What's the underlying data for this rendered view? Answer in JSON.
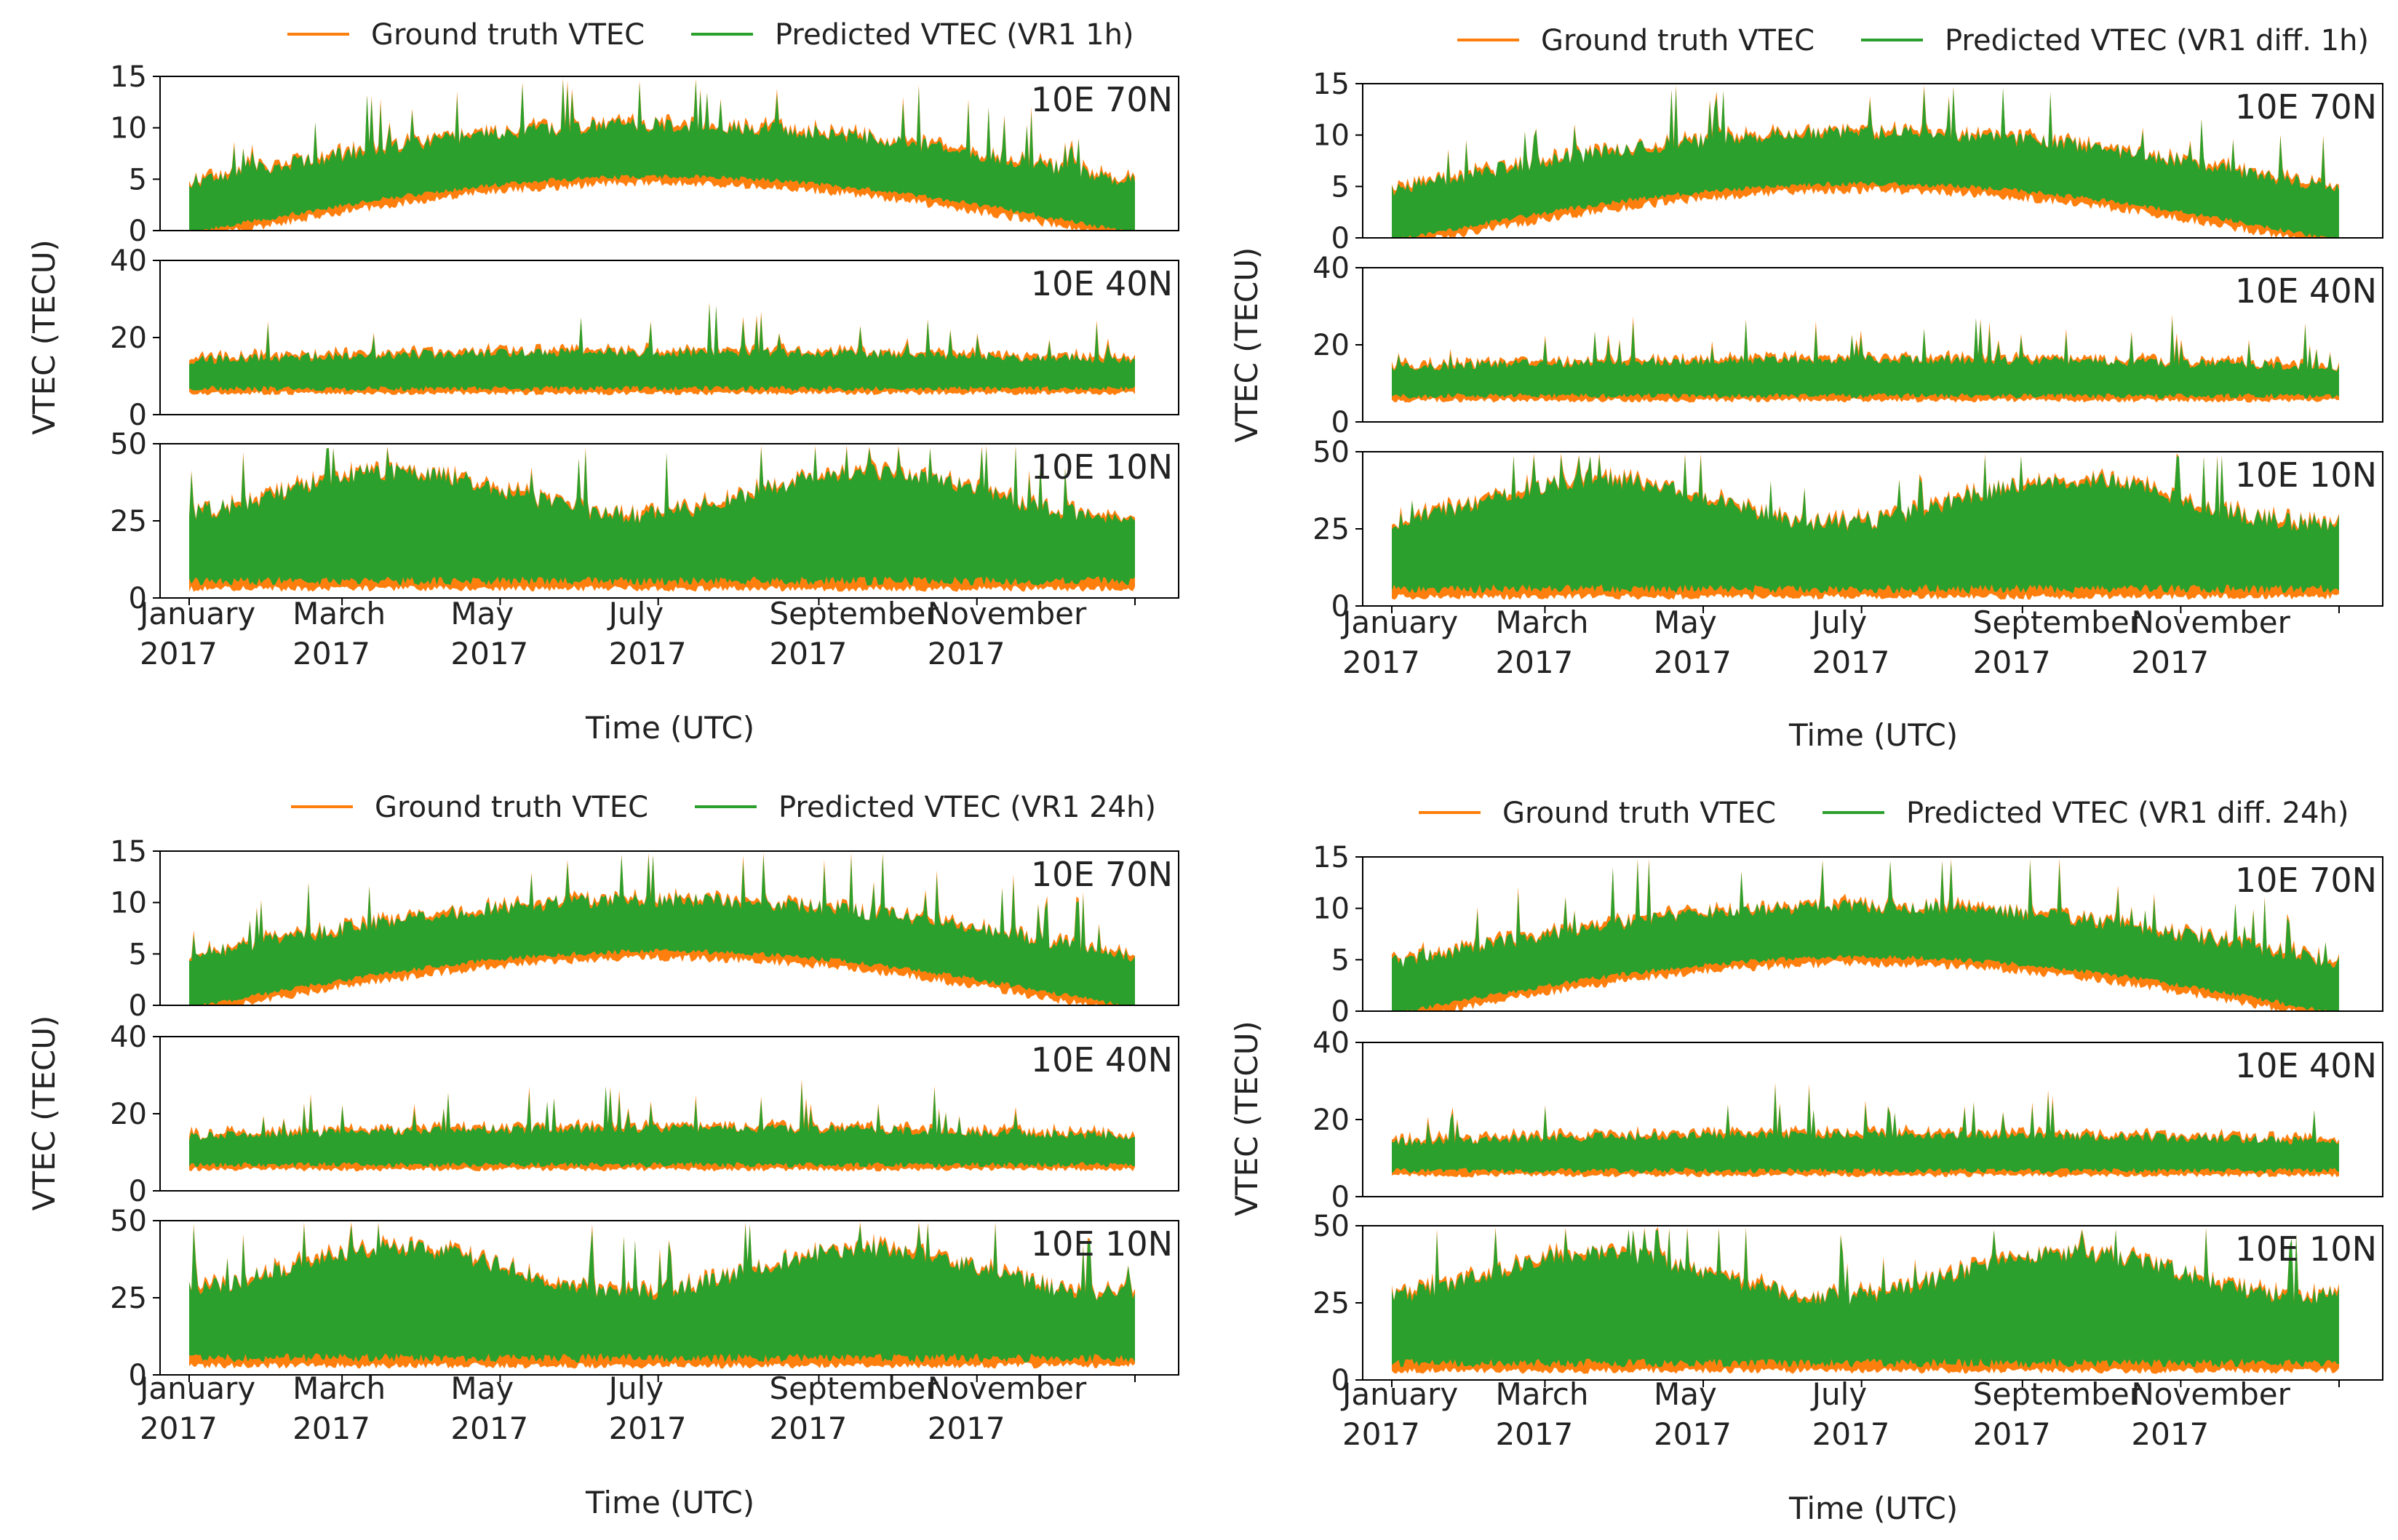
{
  "figure": {
    "legend_ground_truth": "Ground truth VTEC",
    "series_colors": {
      "ground_truth": "#ff7f0e",
      "predicted": "#2ca02c"
    },
    "month_ticks": [
      {
        "month": "January",
        "year": "2017",
        "day": 0
      },
      {
        "month": "March",
        "year": "2017",
        "day": 59
      },
      {
        "month": "May",
        "year": "2017",
        "day": 120
      },
      {
        "month": "July",
        "year": "2017",
        "day": 181
      },
      {
        "month": "September",
        "year": "2017",
        "day": 243
      },
      {
        "month": "November",
        "year": "2017",
        "day": 304
      }
    ]
  },
  "chart_data": [
    {
      "type": "line",
      "legend_predicted": "Predicted VTEC (VR1 1h)",
      "xlabel": "Time (UTC)",
      "ylabel": "VTEC (TECU)",
      "x_range_days": [
        0,
        365
      ],
      "series": [
        {
          "name": "Ground truth VTEC",
          "color": "#ff7f0e"
        },
        {
          "name": "Predicted VTEC (VR1 1h)",
          "color": "#2ca02c"
        }
      ],
      "subplots": [
        {
          "location": "10E 70N",
          "ylim": [
            0,
            15
          ],
          "yticks": [
            0,
            5,
            10,
            15
          ]
        },
        {
          "location": "10E 40N",
          "ylim": [
            0,
            40
          ],
          "yticks": [
            0,
            20,
            40
          ]
        },
        {
          "location": "10E 10N",
          "ylim": [
            0,
            50
          ],
          "yticks": [
            0,
            25,
            50
          ]
        }
      ]
    },
    {
      "type": "line",
      "legend_predicted": "Predicted VTEC (VR1 diff. 1h)",
      "xlabel": "Time (UTC)",
      "ylabel": "VTEC (TECU)",
      "x_range_days": [
        0,
        365
      ],
      "series": [
        {
          "name": "Ground truth VTEC",
          "color": "#ff7f0e"
        },
        {
          "name": "Predicted VTEC (VR1 diff. 1h)",
          "color": "#2ca02c"
        }
      ],
      "subplots": [
        {
          "location": "10E 70N",
          "ylim": [
            0,
            15
          ],
          "yticks": [
            0,
            5,
            10,
            15
          ]
        },
        {
          "location": "10E 40N",
          "ylim": [
            0,
            40
          ],
          "yticks": [
            0,
            20,
            40
          ]
        },
        {
          "location": "10E 10N",
          "ylim": [
            0,
            50
          ],
          "yticks": [
            0,
            25,
            50
          ]
        }
      ]
    },
    {
      "type": "line",
      "legend_predicted": "Predicted VTEC (VR1 24h)",
      "xlabel": "Time (UTC)",
      "ylabel": "VTEC (TECU)",
      "x_range_days": [
        0,
        365
      ],
      "series": [
        {
          "name": "Ground truth VTEC",
          "color": "#ff7f0e"
        },
        {
          "name": "Predicted VTEC (VR1 24h)",
          "color": "#2ca02c"
        }
      ],
      "subplots": [
        {
          "location": "10E 70N",
          "ylim": [
            0,
            15
          ],
          "yticks": [
            0,
            5,
            10,
            15
          ]
        },
        {
          "location": "10E 40N",
          "ylim": [
            0,
            40
          ],
          "yticks": [
            0,
            20,
            40
          ]
        },
        {
          "location": "10E 10N",
          "ylim": [
            0,
            50
          ],
          "yticks": [
            0,
            25,
            50
          ]
        }
      ]
    },
    {
      "type": "line",
      "legend_predicted": "Predicted VTEC (VR1 diff. 24h)",
      "xlabel": "Time (UTC)",
      "ylabel": "VTEC (TECU)",
      "x_range_days": [
        0,
        365
      ],
      "series": [
        {
          "name": "Ground truth VTEC",
          "color": "#ff7f0e"
        },
        {
          "name": "Predicted VTEC (VR1 diff. 24h)",
          "color": "#2ca02c"
        }
      ],
      "subplots": [
        {
          "location": "10E 70N",
          "ylim": [
            0,
            15
          ],
          "yticks": [
            0,
            5,
            10,
            15
          ]
        },
        {
          "location": "10E 40N",
          "ylim": [
            0,
            40
          ],
          "yticks": [
            0,
            20,
            40
          ]
        },
        {
          "location": "10E 10N",
          "ylim": [
            0,
            50
          ],
          "yticks": [
            0,
            25,
            50
          ]
        }
      ]
    }
  ]
}
